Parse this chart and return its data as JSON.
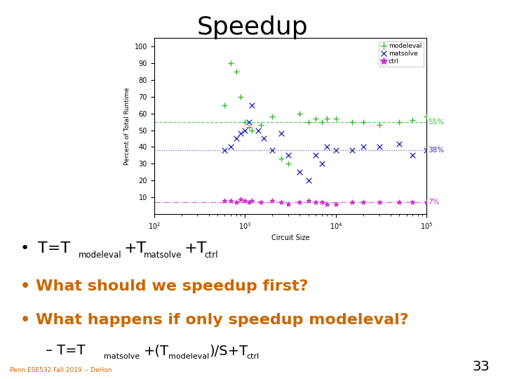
{
  "title": "Speedup",
  "title_fontsize": 26,
  "title_color": "#000000",
  "background_color": "#ffffff",
  "bullet_color_black": "#000000",
  "bullet_color_orange": "#cc6600",
  "bullet2": "What should we speedup first?",
  "bullet3": "What happens if only speedup modeleval?",
  "footer": "Penn ESE532 Fall 2019 -- DeHon",
  "footer_color": "#cc6600",
  "page_number": "33",
  "chart": {
    "xlabel": "Circuit Size",
    "ylabel": "Percent of Total Runtime",
    "ylim": [
      0,
      105
    ],
    "yticks": [
      10,
      20,
      30,
      40,
      50,
      60,
      70,
      80,
      90,
      100
    ],
    "modeleval_color": "#33bb33",
    "matsolve_color": "#3333bb",
    "ctrl_color": "#cc33cc",
    "hline_modeleval": 55,
    "hline_matsolve": 38,
    "hline_ctrl": 7,
    "label_55": "55%",
    "label_38": "38%",
    "label_7": "7%",
    "modeleval_x": [
      600,
      700,
      800,
      900,
      1000,
      1100,
      1200,
      1500,
      2000,
      2500,
      3000,
      4000,
      5000,
      6000,
      7000,
      8000,
      10000,
      15000,
      20000,
      30000,
      50000,
      70000,
      100000
    ],
    "modeleval_y": [
      65,
      90,
      85,
      70,
      55,
      52,
      50,
      53,
      58,
      33,
      30,
      60,
      55,
      57,
      55,
      57,
      57,
      55,
      55,
      53,
      55,
      56,
      58
    ],
    "matsolve_x": [
      600,
      700,
      800,
      900,
      1000,
      1100,
      1200,
      1400,
      1600,
      2000,
      2500,
      3000,
      4000,
      5000,
      6000,
      7000,
      8000,
      10000,
      15000,
      20000,
      30000,
      50000,
      70000,
      100000
    ],
    "matsolve_y": [
      38,
      40,
      45,
      48,
      50,
      55,
      65,
      50,
      45,
      38,
      48,
      35,
      25,
      20,
      35,
      30,
      40,
      38,
      38,
      40,
      40,
      42,
      35,
      38
    ],
    "ctrl_x": [
      600,
      700,
      800,
      900,
      1000,
      1100,
      1200,
      1500,
      2000,
      2500,
      3000,
      4000,
      5000,
      6000,
      7000,
      8000,
      10000,
      15000,
      20000,
      30000,
      50000,
      70000,
      100000
    ],
    "ctrl_y": [
      8,
      8,
      7,
      9,
      8,
      7,
      8,
      7,
      8,
      7,
      6,
      7,
      8,
      7,
      7,
      6,
      6,
      7,
      7,
      7,
      7,
      7,
      7
    ]
  }
}
